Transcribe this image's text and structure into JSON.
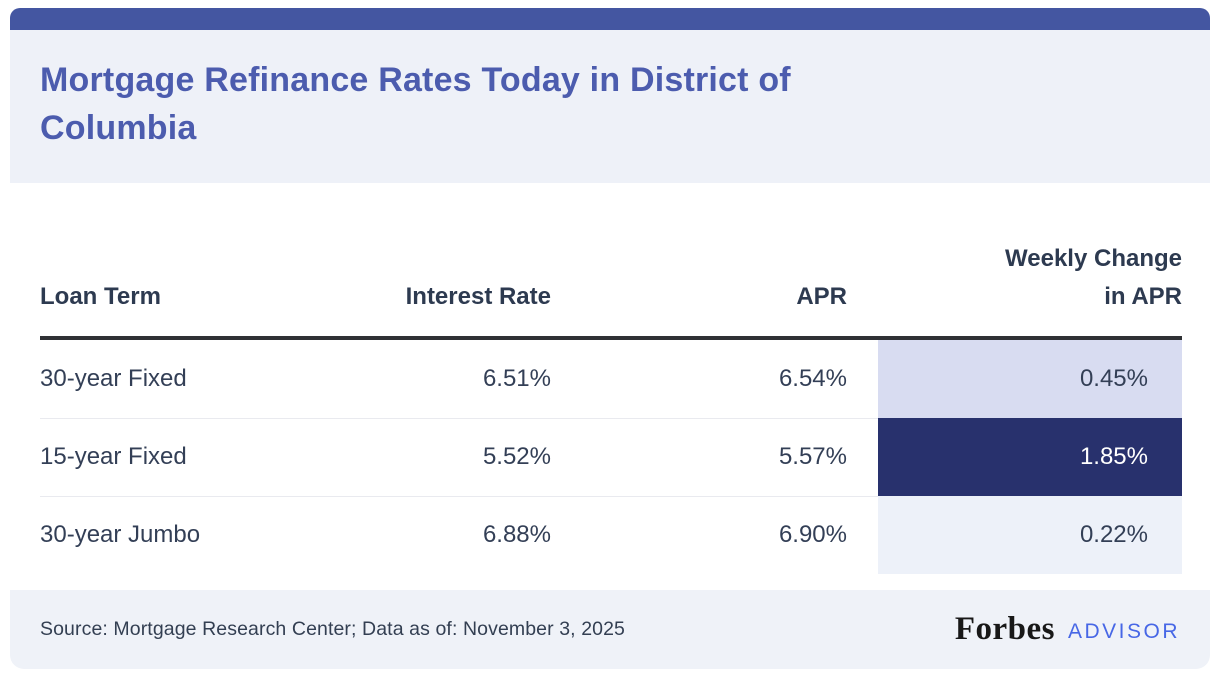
{
  "header": {
    "title": "Mortgage Refinance Rates Today in District of Columbia",
    "title_lines": [
      "Mortgage Refinance Rates Today in District of",
      "Columbia"
    ]
  },
  "table": {
    "columns": {
      "loan_term": "Loan Term",
      "interest_rate": "Interest Rate",
      "apr": "APR",
      "weekly_change_line1": "Weekly Change",
      "weekly_change_line2": "in APR"
    },
    "rows": [
      {
        "loan_term": "30-year Fixed",
        "interest_rate": "6.51%",
        "apr": "6.54%",
        "weekly_change_in_apr": "0.45%",
        "highlight": "light"
      },
      {
        "loan_term": "15-year Fixed",
        "interest_rate": "5.52%",
        "apr": "5.57%",
        "weekly_change_in_apr": "1.85%",
        "highlight": "dark"
      },
      {
        "loan_term": "30-year Jumbo",
        "interest_rate": "6.88%",
        "apr": "6.90%",
        "weekly_change_in_apr": "0.22%",
        "highlight": "faint"
      }
    ]
  },
  "footer": {
    "source_text": "Source: Mortgage Research Center; Data as of: November 3, 2025",
    "brand_name": "Forbes",
    "brand_suffix": "ADVISOR"
  },
  "colors": {
    "topbar": "#4456a1",
    "header_band_bg": "#eef1f8",
    "title_text": "#4c5cae",
    "header_rule": "#2f3135",
    "weekly_cell_light": "#d8dcf1",
    "weekly_cell_dark": "#28316d",
    "weekly_cell_faint": "#edf1f9",
    "footer_bg": "#eff2f8",
    "advisor_blue": "#4767e6"
  },
  "chart_data": {
    "type": "table",
    "title": "Mortgage Refinance Rates Today in District of Columbia",
    "columns": [
      "Loan Term",
      "Interest Rate",
      "APR",
      "Weekly Change in APR"
    ],
    "rows": [
      [
        "30-year Fixed",
        "6.51%",
        "6.54%",
        "0.45%"
      ],
      [
        "15-year Fixed",
        "5.52%",
        "5.57%",
        "1.85%"
      ],
      [
        "30-year Jumbo",
        "6.88%",
        "6.90%",
        "0.22%"
      ]
    ],
    "notes": "Weekly Change in APR column cells are shaded by magnitude: 0.45% light lavender, 1.85% dark navy (white text), 0.22% faint blue",
    "source": "Source: Mortgage Research Center; Data as of: November 3, 2025"
  }
}
